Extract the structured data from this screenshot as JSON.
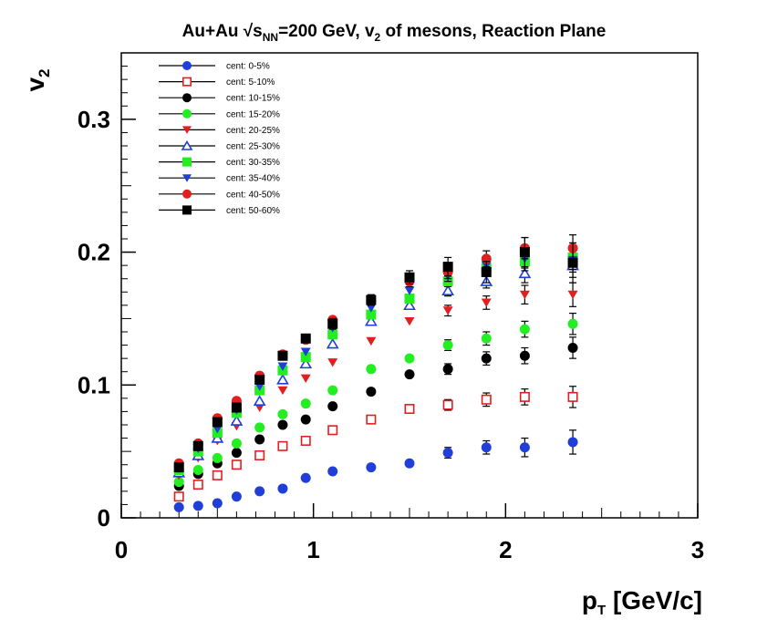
{
  "chart_data": {
    "type": "scatter",
    "title": {
      "prefix": "Au+Au ",
      "sqrt_symbol": "√",
      "s": "s",
      "s_sub": "NN",
      "after_s": "=200 GeV, v",
      "v_sub": "2",
      "suffix": " of mesons, Reaction Plane"
    },
    "xlabel": {
      "main": "p",
      "sub": "T",
      "rest": " [GeV/c]"
    },
    "ylabel": {
      "main": "v",
      "sub": "2"
    },
    "xlim": [
      0,
      3
    ],
    "ylim": [
      0,
      0.35
    ],
    "xticks": [
      0,
      1,
      2,
      3
    ],
    "xtick_labels": [
      "0",
      "1",
      "2",
      "3"
    ],
    "yticks": [
      0,
      0.1,
      0.2,
      0.3
    ],
    "ytick_labels": [
      "0",
      "0.1",
      "0.2",
      "0.3"
    ],
    "legend_position": "top-left",
    "x": [
      0.3,
      0.4,
      0.5,
      0.6,
      0.72,
      0.84,
      0.96,
      1.1,
      1.3,
      1.5,
      1.7,
      1.9,
      2.1,
      2.35
    ],
    "series": [
      {
        "name": "cent: 0-5%",
        "marker": "circle",
        "color": "#1f3fd8",
        "values": [
          0.008,
          0.009,
          0.011,
          0.016,
          0.02,
          0.022,
          0.03,
          0.035,
          0.038,
          0.041,
          0.049,
          0.053,
          0.053,
          0.057
        ],
        "errors": [
          0.002,
          0.002,
          0.002,
          0.002,
          0.002,
          0.002,
          0.002,
          0.003,
          0.003,
          0.003,
          0.004,
          0.005,
          0.007,
          0.009
        ]
      },
      {
        "name": "cent: 5-10%",
        "marker": "open-square",
        "color": "#e02020",
        "values": [
          0.016,
          0.025,
          0.032,
          0.04,
          0.047,
          0.054,
          0.058,
          0.066,
          0.074,
          0.082,
          0.085,
          0.089,
          0.091,
          0.091
        ],
        "errors": [
          0.002,
          0.002,
          0.002,
          0.002,
          0.002,
          0.002,
          0.002,
          0.003,
          0.003,
          0.003,
          0.004,
          0.005,
          0.006,
          0.008
        ]
      },
      {
        "name": "cent: 10-15%",
        "marker": "circle",
        "color": "#000000",
        "values": [
          0.024,
          0.033,
          0.041,
          0.049,
          0.059,
          0.07,
          0.074,
          0.084,
          0.095,
          0.108,
          0.112,
          0.12,
          0.122,
          0.128
        ],
        "errors": [
          0.002,
          0.002,
          0.002,
          0.002,
          0.002,
          0.002,
          0.002,
          0.003,
          0.003,
          0.003,
          0.004,
          0.005,
          0.006,
          0.008
        ]
      },
      {
        "name": "cent: 15-20%",
        "marker": "circle",
        "color": "#22ee22",
        "values": [
          0.027,
          0.036,
          0.045,
          0.056,
          0.068,
          0.078,
          0.086,
          0.096,
          0.112,
          0.12,
          0.13,
          0.135,
          0.142,
          0.146
        ],
        "errors": [
          0.002,
          0.002,
          0.002,
          0.002,
          0.002,
          0.002,
          0.002,
          0.003,
          0.003,
          0.003,
          0.004,
          0.005,
          0.006,
          0.008
        ]
      },
      {
        "name": "cent: 20-25%",
        "marker": "triangle-down",
        "color": "#e02020",
        "values": [
          0.032,
          0.045,
          0.058,
          0.069,
          0.083,
          0.096,
          0.105,
          0.117,
          0.133,
          0.148,
          0.156,
          0.162,
          0.168,
          0.168
        ],
        "errors": [
          0.002,
          0.002,
          0.002,
          0.002,
          0.002,
          0.002,
          0.002,
          0.003,
          0.003,
          0.003,
          0.004,
          0.005,
          0.007,
          0.009
        ]
      },
      {
        "name": "cent: 25-30%",
        "marker": "open-triangle",
        "color": "#1f3fd8",
        "values": [
          0.034,
          0.047,
          0.06,
          0.073,
          0.088,
          0.104,
          0.116,
          0.131,
          0.148,
          0.16,
          0.171,
          0.178,
          0.184,
          0.19
        ],
        "errors": [
          0.002,
          0.002,
          0.002,
          0.002,
          0.002,
          0.002,
          0.002,
          0.003,
          0.003,
          0.003,
          0.004,
          0.005,
          0.007,
          0.009
        ]
      },
      {
        "name": "cent: 30-35%",
        "marker": "square",
        "color": "#22ee22",
        "values": [
          0.036,
          0.05,
          0.064,
          0.079,
          0.096,
          0.111,
          0.121,
          0.138,
          0.153,
          0.165,
          0.178,
          0.188,
          0.193,
          0.196
        ],
        "errors": [
          0.002,
          0.002,
          0.002,
          0.002,
          0.002,
          0.002,
          0.002,
          0.003,
          0.003,
          0.003,
          0.004,
          0.005,
          0.007,
          0.009
        ]
      },
      {
        "name": "cent: 35-40%",
        "marker": "triangle-down",
        "color": "#1f3fd8",
        "values": [
          0.037,
          0.052,
          0.067,
          0.081,
          0.099,
          0.114,
          0.125,
          0.143,
          0.158,
          0.171,
          0.182,
          0.19,
          0.195,
          0.194
        ],
        "errors": [
          0.002,
          0.002,
          0.002,
          0.002,
          0.002,
          0.002,
          0.002,
          0.003,
          0.003,
          0.003,
          0.004,
          0.005,
          0.007,
          0.009
        ]
      },
      {
        "name": "cent: 40-50%",
        "marker": "circle",
        "color": "#e02020",
        "values": [
          0.041,
          0.056,
          0.075,
          0.088,
          0.107,
          0.123,
          0.134,
          0.149,
          0.163,
          0.178,
          0.185,
          0.195,
          0.203,
          0.203
        ],
        "errors": [
          0.002,
          0.002,
          0.002,
          0.002,
          0.002,
          0.002,
          0.002,
          0.003,
          0.003,
          0.004,
          0.005,
          0.006,
          0.008,
          0.01
        ]
      },
      {
        "name": "cent: 50-60%",
        "marker": "square",
        "color": "#000000",
        "values": [
          0.038,
          0.054,
          0.072,
          0.083,
          0.104,
          0.122,
          0.135,
          0.146,
          0.164,
          0.181,
          0.189,
          0.185,
          0.2,
          0.192
        ],
        "errors": [
          0.002,
          0.002,
          0.002,
          0.003,
          0.003,
          0.003,
          0.003,
          0.004,
          0.004,
          0.005,
          0.007,
          0.008,
          0.011,
          0.015
        ]
      }
    ]
  }
}
